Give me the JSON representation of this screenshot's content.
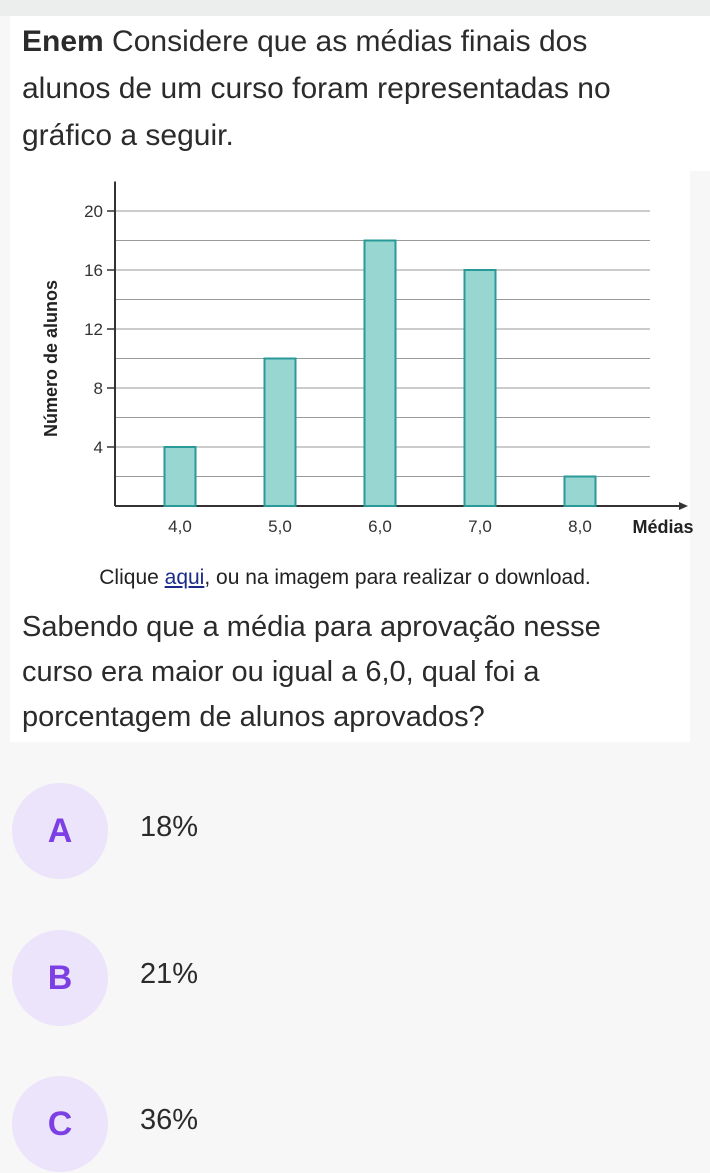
{
  "question": {
    "source": "Enem",
    "intro": "Considere que as médias finais dos alunos de um curso foram representadas no gráfico a seguir.",
    "download_prefix": "Clique ",
    "download_link": "aqui",
    "download_suffix": ", ou na imagem para realizar o download.",
    "body": "Sabendo que a média para aprovação nesse curso era maior ou igual a 6,0, qual foi a porcentagem de alunos aprovados?"
  },
  "options": [
    {
      "letter": "A",
      "text": "18%"
    },
    {
      "letter": "B",
      "text": "21%"
    },
    {
      "letter": "C",
      "text": "36%"
    }
  ],
  "colors": {
    "bar_fill": "#98d6d2",
    "bar_stroke": "#2a9a98",
    "option_circle": "#ece4fb",
    "option_letter": "#7b3fe4",
    "link": "#1a2a8a"
  },
  "chart_data": {
    "type": "bar",
    "categories": [
      "4,0",
      "5,0",
      "6,0",
      "7,0",
      "8,0"
    ],
    "values": [
      4,
      10,
      18,
      16,
      2
    ],
    "xlabel": "Médias",
    "ylabel": "Número de alunos",
    "yticks": [
      4,
      8,
      12,
      16,
      20
    ],
    "ylim": [
      0,
      22
    ],
    "grid": true,
    "legend": "none"
  }
}
